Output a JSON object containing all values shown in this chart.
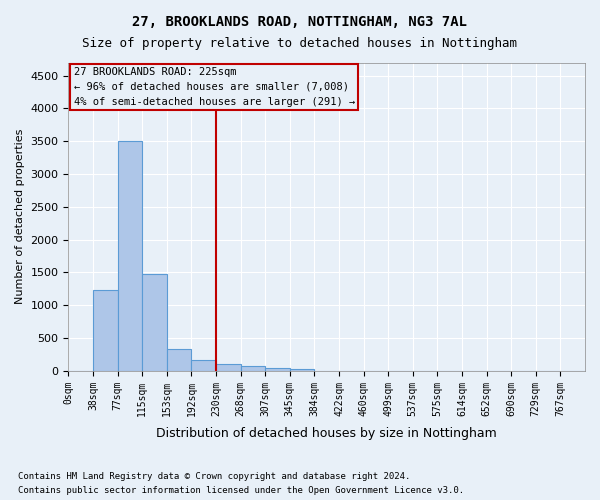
{
  "title1": "27, BROOKLANDS ROAD, NOTTINGHAM, NG3 7AL",
  "title2": "Size of property relative to detached houses in Nottingham",
  "xlabel": "Distribution of detached houses by size in Nottingham",
  "ylabel": "Number of detached properties",
  "footnote1": "Contains HM Land Registry data © Crown copyright and database right 2024.",
  "footnote2": "Contains public sector information licensed under the Open Government Licence v3.0.",
  "bin_labels": [
    "0sqm",
    "38sqm",
    "77sqm",
    "115sqm",
    "153sqm",
    "192sqm",
    "230sqm",
    "268sqm",
    "307sqm",
    "345sqm",
    "384sqm",
    "422sqm",
    "460sqm",
    "499sqm",
    "537sqm",
    "575sqm",
    "614sqm",
    "652sqm",
    "690sqm",
    "729sqm",
    "767sqm"
  ],
  "bar_heights": [
    5,
    1230,
    3500,
    1470,
    330,
    170,
    110,
    75,
    45,
    30,
    5,
    0,
    5,
    0,
    0,
    0,
    0,
    0,
    0,
    0,
    0
  ],
  "bar_color": "#aec6e8",
  "bar_edge_color": "#5b9bd5",
  "ylim": [
    0,
    4700
  ],
  "yticks": [
    0,
    500,
    1000,
    1500,
    2000,
    2500,
    3000,
    3500,
    4000,
    4500
  ],
  "annotation_box_text": [
    "27 BROOKLANDS ROAD: 225sqm",
    "← 96% of detached houses are smaller (7,008)",
    "4% of semi-detached houses are larger (291) →"
  ],
  "background_color": "#e8f0f8",
  "vline_color": "#c00000",
  "box_edge_color": "#c00000",
  "grid_color": "#ffffff",
  "vline_pos": 6.0
}
